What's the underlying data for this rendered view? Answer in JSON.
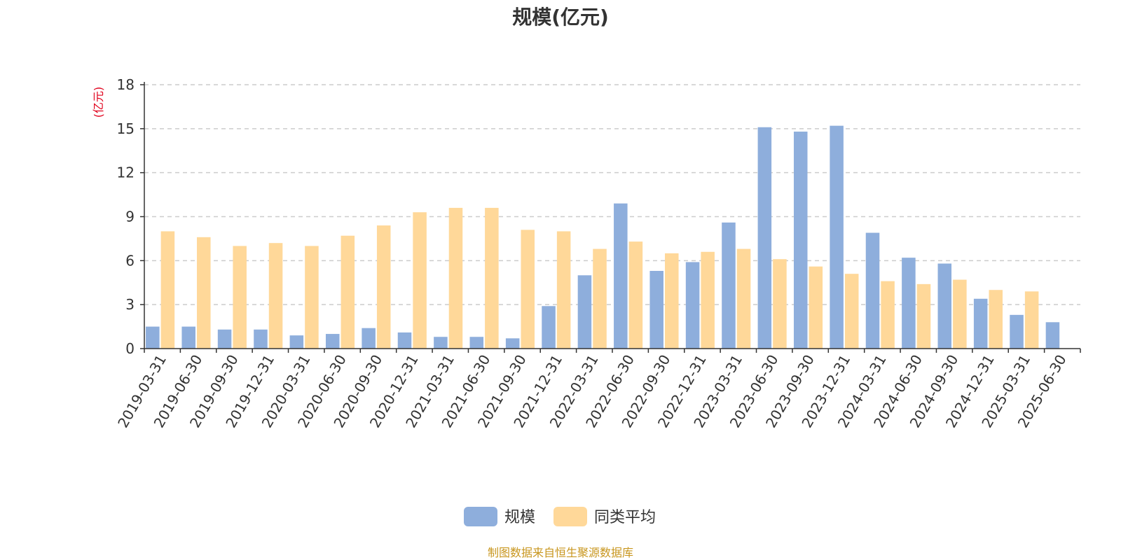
{
  "chart_data": {
    "type": "bar",
    "title": "规模(亿元)",
    "ylabel": "(亿元)",
    "ylim": [
      0,
      18
    ],
    "yticks": [
      0,
      3,
      6,
      9,
      12,
      15,
      18
    ],
    "grid": "horizontal-dashed",
    "legend_position": "bottom-center",
    "categories": [
      "2019-03-31",
      "2019-06-30",
      "2019-09-30",
      "2019-12-31",
      "2020-03-31",
      "2020-06-30",
      "2020-09-30",
      "2020-12-31",
      "2021-03-31",
      "2021-06-30",
      "2021-09-30",
      "2021-12-31",
      "2022-03-31",
      "2022-06-30",
      "2022-09-30",
      "2022-12-31",
      "2023-03-31",
      "2023-06-30",
      "2023-09-30",
      "2023-12-31",
      "2024-03-31",
      "2024-06-30",
      "2024-09-30",
      "2024-12-31",
      "2025-03-31",
      "2025-06-30"
    ],
    "series": [
      {
        "name": "规模",
        "color": "#8eaedc",
        "values": [
          1.5,
          1.5,
          1.3,
          1.3,
          0.9,
          1.0,
          1.4,
          1.1,
          0.8,
          0.8,
          0.7,
          2.9,
          5.0,
          9.9,
          5.3,
          5.9,
          8.6,
          15.1,
          14.8,
          15.2,
          7.9,
          6.2,
          5.8,
          3.4,
          2.3,
          1.8
        ]
      },
      {
        "name": "同类平均",
        "color": "#ffd899",
        "values": [
          8.0,
          7.6,
          7.0,
          7.2,
          7.0,
          7.7,
          8.4,
          9.3,
          9.6,
          9.6,
          8.1,
          8.0,
          6.8,
          7.3,
          6.5,
          6.6,
          6.8,
          6.1,
          5.6,
          5.1,
          4.6,
          4.4,
          4.7,
          4.0,
          3.9,
          null
        ]
      }
    ]
  },
  "source_note": "制图数据来自恒生聚源数据库"
}
